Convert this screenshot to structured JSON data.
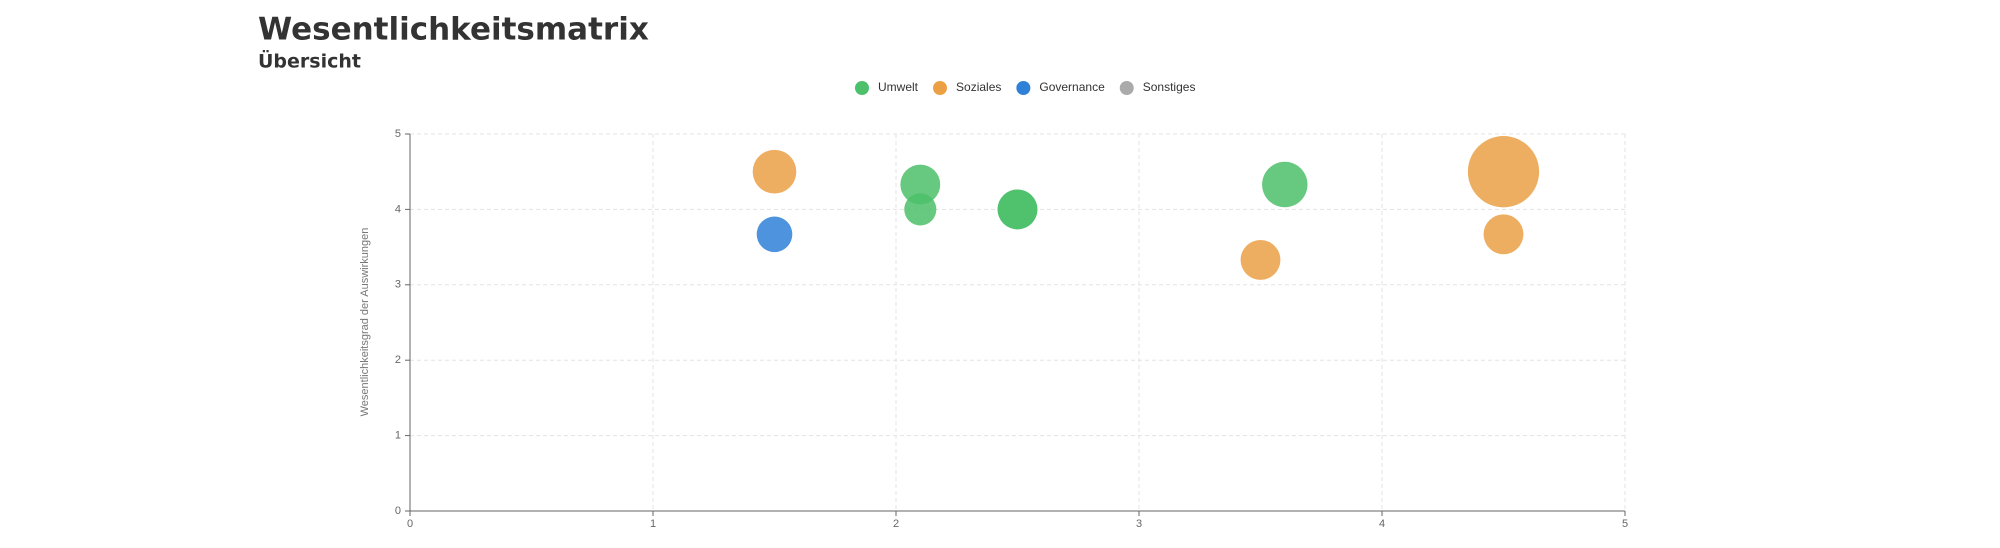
{
  "chart_data": {
    "type": "scatter",
    "title": "Wesentlichkeitsmatrix",
    "subtitle": "Übersicht",
    "ylabel": "Wesentlichkeitsgrad der Auswirkungen",
    "xlim": [
      0,
      5
    ],
    "ylim": [
      0,
      5
    ],
    "xticks": [
      0,
      1,
      2,
      3,
      4,
      5
    ],
    "yticks": [
      0,
      1,
      2,
      3,
      4,
      5
    ],
    "grid": true,
    "series": [
      {
        "name": "Umwelt",
        "color": "#4cc06a",
        "x": [
          2.1,
          2.1,
          2.5,
          2.5,
          3.6
        ],
        "values": [
          4.33,
          4.0,
          4.0,
          4.0,
          4.33
        ],
        "sizes": [
          10,
          6.5,
          10,
          10,
          13
        ]
      },
      {
        "name": "Soziales",
        "color": "#eba045",
        "x": [
          1.5,
          3.5,
          4.5,
          4.5
        ],
        "values": [
          4.5,
          3.33,
          4.5,
          3.67
        ],
        "sizes": [
          12,
          10,
          32,
          10
        ]
      },
      {
        "name": "Governance",
        "color": "#2f80d8",
        "x": [
          1.5
        ],
        "values": [
          3.67
        ],
        "sizes": [
          8
        ]
      },
      {
        "name": "Sonstiges",
        "color": "#aaaaaa",
        "x": [],
        "values": [],
        "sizes": []
      }
    ]
  }
}
